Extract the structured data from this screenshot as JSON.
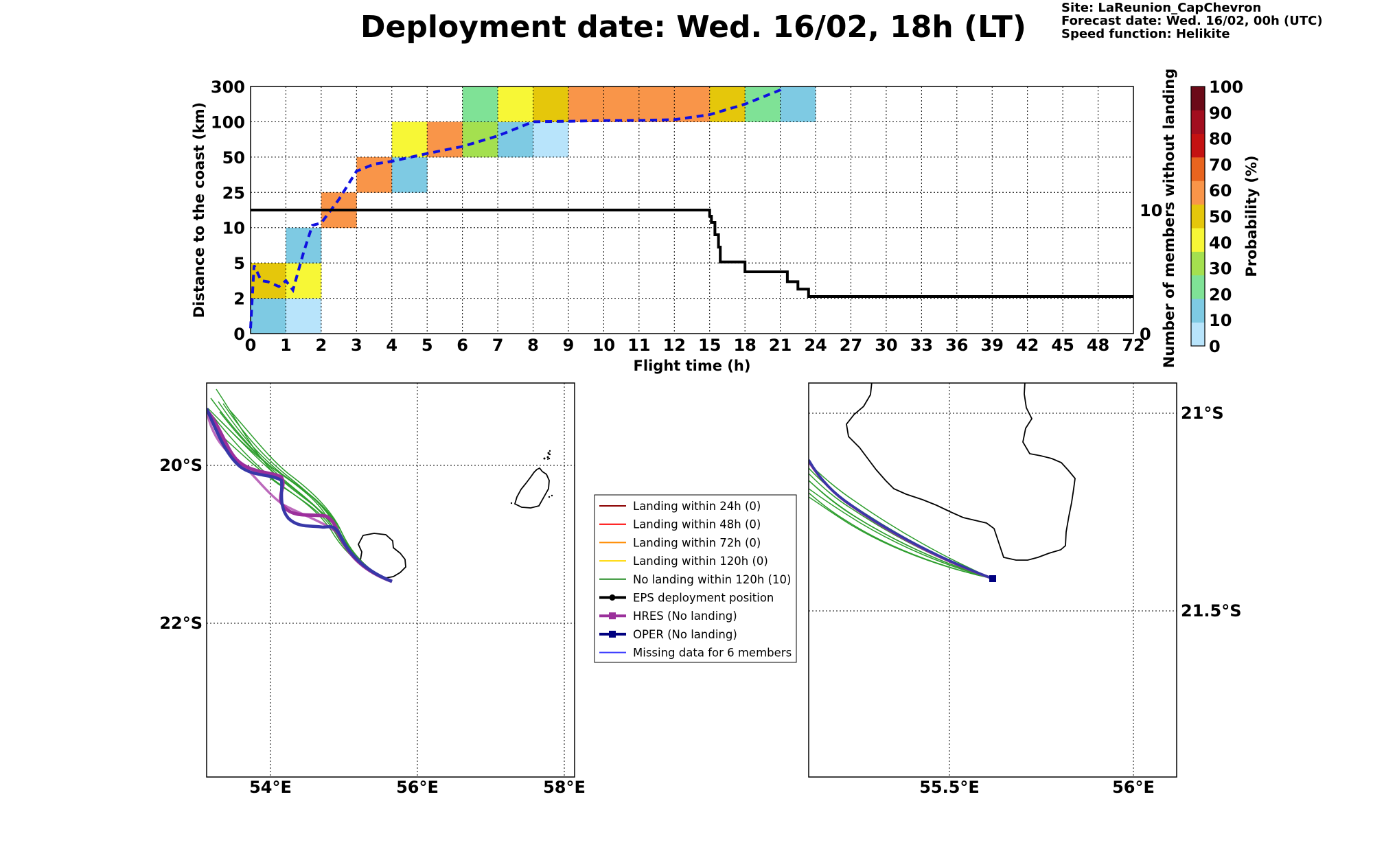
{
  "header": {
    "title": "Deployment date: Wed. 16/02, 18h (LT)",
    "site": "Site: LaReunion_CapChevron",
    "forecast": "Forecast date: Wed. 16/02, 00h (UTC)",
    "speed": "Speed function: Helikite"
  },
  "chart_data": [
    {
      "type": "heatmap",
      "xlabel": "Flight time (h)",
      "ylabel": "Distance to the coast (km)",
      "y2label": "Number of members without landing",
      "colorbar_label": "Probability (%)",
      "x_ticks": [
        "0",
        "1",
        "2",
        "3",
        "4",
        "5",
        "6",
        "7",
        "8",
        "9",
        "10",
        "11",
        "12",
        "15",
        "18",
        "21",
        "24",
        "27",
        "30",
        "33",
        "36",
        "39",
        "42",
        "45",
        "48",
        "72"
      ],
      "y_ticks": [
        "0",
        "2",
        "5",
        "10",
        "25",
        "50",
        "100",
        "300"
      ],
      "y2_ticks": [
        "0",
        "10"
      ],
      "grid": true,
      "colorbar": {
        "ticks": [
          "0",
          "10",
          "20",
          "30",
          "40",
          "50",
          "60",
          "70",
          "80",
          "90",
          "100"
        ],
        "colors": [
          "#b8e4fb",
          "#7ecae3",
          "#7fe296",
          "#a4e04f",
          "#f7f736",
          "#e5c70b",
          "#f99549",
          "#e8641e",
          "#c41212",
          "#a20e1f",
          "#6b0a18"
        ]
      },
      "cells": [
        {
          "t": 0,
          "band": 0,
          "p": 10
        },
        {
          "t": 0,
          "band": 1,
          "p": 50
        },
        {
          "t": 1,
          "band": 0,
          "p": 0
        },
        {
          "t": 1,
          "band": 1,
          "p": 40
        },
        {
          "t": 1,
          "band": 2,
          "p": 10
        },
        {
          "t": 2,
          "band": 3,
          "p": 60
        },
        {
          "t": 3,
          "band": 4,
          "p": 60
        },
        {
          "t": 4,
          "band": 4,
          "p": 10
        },
        {
          "t": 4,
          "band": 5,
          "p": 40
        },
        {
          "t": 5,
          "band": 5,
          "p": 60
        },
        {
          "t": 6,
          "band": 5,
          "p": 30
        },
        {
          "t": 6,
          "band": 6,
          "p": 20
        },
        {
          "t": 7,
          "band": 5,
          "p": 10
        },
        {
          "t": 7,
          "band": 6,
          "p": 40
        },
        {
          "t": 8,
          "band": 5,
          "p": 0
        },
        {
          "t": 8,
          "band": 6,
          "p": 50
        },
        {
          "t": 9,
          "band": 6,
          "p": 60
        },
        {
          "t": 10,
          "band": 6,
          "p": 60
        },
        {
          "t": 11,
          "band": 6,
          "p": 60
        },
        {
          "t": 12,
          "band": 6,
          "p": 60
        },
        {
          "t": 13,
          "band": 6,
          "p": 50
        },
        {
          "t": 14,
          "band": 6,
          "p": 20
        },
        {
          "t": 15,
          "band": 6,
          "p": 10
        }
      ],
      "median_distance": [
        [
          0,
          0.3
        ],
        [
          0.1,
          4.8
        ],
        [
          0.3,
          3.5
        ],
        [
          0.5,
          3.4
        ],
        [
          0.8,
          3.0
        ],
        [
          1.0,
          3.5
        ],
        [
          1.2,
          2.7
        ],
        [
          1.5,
          6.5
        ],
        [
          1.75,
          11
        ],
        [
          2.0,
          12
        ],
        [
          2.5,
          22
        ],
        [
          3.0,
          40
        ],
        [
          3.5,
          45
        ],
        [
          4.0,
          47
        ],
        [
          5.0,
          55
        ],
        [
          6.0,
          65
        ],
        [
          7.0,
          80
        ],
        [
          8.0,
          100
        ],
        [
          9.0,
          103
        ],
        [
          10,
          107
        ],
        [
          11,
          108
        ],
        [
          12,
          112
        ],
        [
          13,
          140
        ],
        [
          14,
          200
        ],
        [
          15,
          280
        ],
        [
          15.1,
          300
        ]
      ],
      "members_without_landing": [
        [
          0,
          10
        ],
        [
          12.9,
          10
        ],
        [
          13.0,
          9.5
        ],
        [
          13.05,
          9
        ],
        [
          13.15,
          8
        ],
        [
          13.25,
          7
        ],
        [
          13.3,
          5.8
        ],
        [
          13.8,
          5.8
        ],
        [
          14.0,
          5
        ],
        [
          15.0,
          5
        ],
        [
          15.2,
          4.2
        ],
        [
          15.5,
          3.6
        ],
        [
          15.8,
          3.0
        ],
        [
          20.0,
          3.0
        ],
        [
          24,
          3.0
        ]
      ],
      "y2_range": [
        0,
        20
      ]
    },
    {
      "type": "map",
      "x_ticks": [
        "54°E",
        "56°E",
        "58°E"
      ],
      "y_ticks": [
        "20°S",
        "22°S"
      ],
      "legend": [
        {
          "label": "Landing within 24h (0)",
          "color": "#8b0000",
          "marker": "none"
        },
        {
          "label": "Landing within 48h (0)",
          "color": "#ff0000",
          "marker": "none"
        },
        {
          "label": "Landing within 72h (0)",
          "color": "#ff8c00",
          "marker": "none"
        },
        {
          "label": "Landing within 120h (0)",
          "color": "#ffd700",
          "marker": "none"
        },
        {
          "label": "No landing within 120h (10)",
          "color": "#228b22",
          "marker": "none"
        },
        {
          "label": "EPS deployment position",
          "color": "#000000",
          "marker": "dot"
        },
        {
          "label": "HRES (No landing)",
          "color": "#9b309b",
          "marker": "square"
        },
        {
          "label": "OPER (No landing)",
          "color": "#000080",
          "marker": "square"
        },
        {
          "label": "Missing data for 6 members",
          "color": "#3a3aff",
          "marker": "none"
        }
      ]
    },
    {
      "type": "map",
      "x_ticks": [
        "55.5°E",
        "56°E"
      ],
      "y_ticks": [
        "21°S",
        "21.5°S"
      ]
    }
  ]
}
